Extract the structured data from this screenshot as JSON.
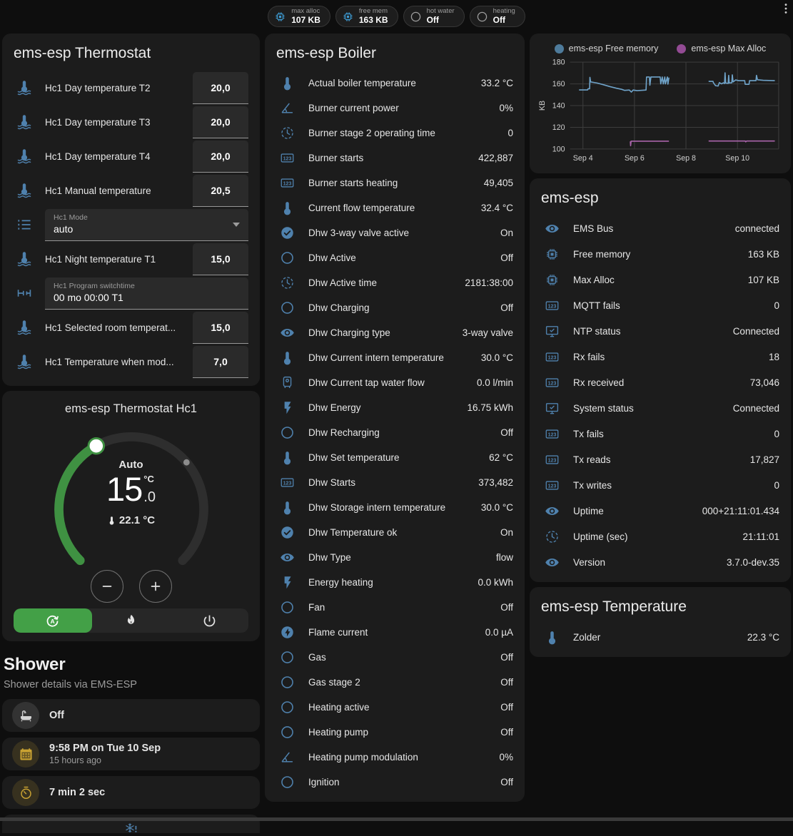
{
  "colors": {
    "accent_green": "#43a047",
    "icon_blue": "#4f81ad",
    "chip_blue": "#3d9ad1",
    "amber": "#c9a232"
  },
  "header": {
    "chips": [
      {
        "icon": "chip",
        "icon_color": "#3d9ad1",
        "label": "max alloc",
        "value": "107 KB"
      },
      {
        "icon": "chip",
        "icon_color": "#3d9ad1",
        "label": "free mem",
        "value": "163 KB"
      },
      {
        "icon": "circle",
        "icon_color": "#9e9e9e",
        "label": "hot water",
        "value": "Off"
      },
      {
        "icon": "circle",
        "icon_color": "#9e9e9e",
        "label": "heating",
        "value": "Off"
      }
    ]
  },
  "thermostat_card": {
    "title": "ems-esp Thermostat",
    "rows": [
      {
        "type": "number",
        "icon": "thermometer-water",
        "label": "Hc1 Day temperature T2",
        "value": "20,0"
      },
      {
        "type": "number",
        "icon": "thermometer-water",
        "label": "Hc1 Day temperature T3",
        "value": "20,0"
      },
      {
        "type": "number",
        "icon": "thermometer-water",
        "label": "Hc1 Day temperature T4",
        "value": "20,0"
      },
      {
        "type": "number",
        "icon": "thermometer-water",
        "label": "Hc1 Manual temperature",
        "value": "20,5"
      },
      {
        "type": "select",
        "icon": "format-list",
        "label": "Hc1 Mode",
        "value": "auto"
      },
      {
        "type": "number",
        "icon": "thermometer-water",
        "label": "Hc1 Night temperature T1",
        "value": "15,0"
      },
      {
        "type": "text",
        "icon": "pipe-valve",
        "label": "Hc1 Program switchtime",
        "value": "00 mo 00:00 T1"
      },
      {
        "type": "number",
        "icon": "thermometer-water",
        "label": "Hc1 Selected room temperat...",
        "value": "15,0"
      },
      {
        "type": "number",
        "icon": "thermometer-water",
        "label": "Hc1 Temperature when mod...",
        "value": "7,0"
      }
    ]
  },
  "hc1_card": {
    "title": "ems-esp Thermostat Hc1",
    "mode_text": "Auto",
    "target_whole": "15",
    "target_fraction": ".0",
    "unit": "°C",
    "current_temp": "22.1 °C",
    "modes": [
      {
        "icon": "auto-mode",
        "active": true
      },
      {
        "icon": "fire"
      },
      {
        "icon": "power"
      }
    ]
  },
  "shower": {
    "title": "Shower",
    "subtitle": "Shower details via EMS-ESP",
    "items": [
      {
        "icon": "bathtub",
        "icon_color": "#d4d4d4",
        "icon_bg": "rgba(255,255,255,0.1)",
        "value": "Off"
      },
      {
        "icon": "calendar",
        "icon_color": "#c9a232",
        "icon_bg": "rgba(201,162,50,0.16)",
        "value": "9:58 PM on Tue 10 Sep",
        "secondary": "15 hours ago"
      },
      {
        "icon": "timer",
        "icon_color": "#c9a232",
        "icon_bg": "rgba(201,162,50,0.16)",
        "value": "7 min 2 sec"
      },
      {
        "type": "alert",
        "icon": "snowflake-alert",
        "icon_color": "#4f81ad"
      }
    ]
  },
  "boiler_card": {
    "title": "ems-esp Boiler",
    "rows": [
      {
        "icon": "thermometer",
        "label": "Actual boiler temperature",
        "value": "33.2 °C"
      },
      {
        "icon": "angle",
        "label": "Burner current power",
        "value": "0%"
      },
      {
        "icon": "clock",
        "label": "Burner stage 2 operating time",
        "value": "0"
      },
      {
        "icon": "counter",
        "label": "Burner starts",
        "value": "422,887"
      },
      {
        "icon": "counter",
        "label": "Burner starts heating",
        "value": "49,405"
      },
      {
        "icon": "thermometer",
        "label": "Current flow temperature",
        "value": "32.4 °C"
      },
      {
        "icon": "check-circle",
        "label": "Dhw 3-way valve active",
        "value": "On"
      },
      {
        "icon": "circle",
        "label": "Dhw Active",
        "value": "Off"
      },
      {
        "icon": "clock",
        "label": "Dhw Active time",
        "value": "2181:38:00"
      },
      {
        "icon": "circle",
        "label": "Dhw Charging",
        "value": "Off"
      },
      {
        "icon": "eye",
        "label": "Dhw Charging type",
        "value": "3-way valve"
      },
      {
        "icon": "thermometer",
        "label": "Dhw Current intern temperature",
        "value": "30.0 °C"
      },
      {
        "icon": "water-heater",
        "label": "Dhw Current tap water flow",
        "value": "0.0 l/min"
      },
      {
        "icon": "flash",
        "label": "Dhw Energy",
        "value": "16.75 kWh"
      },
      {
        "icon": "circle",
        "label": "Dhw Recharging",
        "value": "Off"
      },
      {
        "icon": "thermometer",
        "label": "Dhw Set temperature",
        "value": "62 °C"
      },
      {
        "icon": "counter",
        "label": "Dhw Starts",
        "value": "373,482"
      },
      {
        "icon": "thermometer",
        "label": "Dhw Storage intern temperature",
        "value": "30.0 °C"
      },
      {
        "icon": "check-circle",
        "label": "Dhw Temperature ok",
        "value": "On"
      },
      {
        "icon": "eye",
        "label": "Dhw Type",
        "value": "flow"
      },
      {
        "icon": "flash",
        "label": "Energy heating",
        "value": "0.0 kWh"
      },
      {
        "icon": "circle",
        "label": "Fan",
        "value": "Off"
      },
      {
        "icon": "flash-circle",
        "label": "Flame current",
        "value": "0.0 µA"
      },
      {
        "icon": "circle",
        "label": "Gas",
        "value": "Off"
      },
      {
        "icon": "circle",
        "label": "Gas stage 2",
        "value": "Off"
      },
      {
        "icon": "circle",
        "label": "Heating active",
        "value": "Off"
      },
      {
        "icon": "circle",
        "label": "Heating pump",
        "value": "Off"
      },
      {
        "icon": "angle",
        "label": "Heating pump modulation",
        "value": "0%"
      },
      {
        "icon": "circle",
        "label": "Ignition",
        "value": "Off"
      }
    ]
  },
  "chart_data": {
    "type": "line",
    "title": "",
    "ylabel": "KB",
    "grid": true,
    "legend_position": "top",
    "xlim": [
      3.5,
      11.6
    ],
    "ylim": [
      100,
      180
    ],
    "yticks": [
      100,
      120,
      140,
      160,
      180
    ],
    "xticks": [
      {
        "v": 4,
        "label": "Sep 4"
      },
      {
        "v": 6,
        "label": "Sep 6"
      },
      {
        "v": 8,
        "label": "Sep 8"
      },
      {
        "v": 10,
        "label": "Sep 10"
      }
    ],
    "series": [
      {
        "name": "ems-esp Free memory",
        "color": "#4e7b9b",
        "line_color": "#6fa3c9",
        "segments": [
          [
            [
              3.85,
              154.5
            ],
            [
              4.18,
              154.5
            ],
            [
              4.2,
              155.5
            ],
            [
              4.26,
              155.5
            ],
            [
              4.27,
              166
            ],
            [
              4.3,
              161.8
            ],
            [
              4.55,
              160.8
            ],
            [
              4.8,
              159.2
            ],
            [
              5.05,
              157.5
            ],
            [
              5.3,
              156
            ],
            [
              5.5,
              155
            ],
            [
              5.62,
              154
            ],
            [
              5.8,
              154.3
            ],
            [
              5.88,
              152.5
            ],
            [
              5.95,
              154.3
            ],
            [
              6.1,
              153.8
            ],
            [
              6.45,
              154.3
            ],
            [
              6.47,
              166.3
            ],
            [
              6.58,
              166.3
            ],
            [
              6.6,
              158.8
            ],
            [
              6.64,
              166.3
            ],
            [
              7.0,
              166.3
            ],
            [
              7.02,
              160
            ],
            [
              7.08,
              166.3
            ],
            [
              7.12,
              160
            ],
            [
              7.18,
              166.3
            ],
            [
              7.2,
              160
            ],
            [
              7.28,
              166.3
            ],
            [
              7.3,
              159.8
            ],
            [
              7.34,
              165.8
            ]
          ],
          [
            [
              8.88,
              162.3
            ],
            [
              9.05,
              162.3
            ],
            [
              9.07,
              161
            ],
            [
              9.15,
              158.3
            ],
            [
              9.25,
              158
            ],
            [
              9.3,
              161.2
            ],
            [
              9.38,
              160
            ],
            [
              9.45,
              161
            ],
            [
              9.5,
              160.3
            ],
            [
              9.52,
              170.2
            ],
            [
              9.54,
              160.8
            ],
            [
              9.64,
              160.5
            ],
            [
              9.66,
              167.8
            ],
            [
              9.68,
              160.8
            ],
            [
              9.78,
              161
            ],
            [
              9.8,
              168.3
            ],
            [
              9.83,
              161.8
            ],
            [
              9.93,
              163.6
            ],
            [
              10.05,
              163
            ],
            [
              10.28,
              163
            ],
            [
              10.3,
              159.6
            ],
            [
              10.45,
              159.6
            ],
            [
              10.47,
              163
            ],
            [
              10.72,
              163
            ],
            [
              10.74,
              167.8
            ],
            [
              10.78,
              163.8
            ],
            [
              11.0,
              163.3
            ],
            [
              11.45,
              163
            ]
          ]
        ]
      },
      {
        "name": "ems-esp Max Alloc",
        "color": "#934b94",
        "line_color": "#a964aa",
        "segments": [
          [
            [
              5.84,
              107
            ],
            [
              5.85,
              103
            ],
            [
              5.87,
              107.2
            ],
            [
              7.34,
              107.2
            ]
          ],
          [
            [
              8.88,
              107.4
            ],
            [
              10.3,
              107.4
            ],
            [
              10.32,
              106.6
            ],
            [
              10.36,
              107.4
            ],
            [
              11.45,
              107.4
            ]
          ]
        ]
      }
    ]
  },
  "emsesp_card": {
    "title": "ems-esp",
    "rows": [
      {
        "icon": "eye",
        "label": "EMS Bus",
        "value": "connected"
      },
      {
        "icon": "chip",
        "label": "Free memory",
        "value": "163 KB"
      },
      {
        "icon": "chip",
        "label": "Max Alloc",
        "value": "107 KB"
      },
      {
        "icon": "counter",
        "label": "MQTT fails",
        "value": "0"
      },
      {
        "icon": "monitor-check",
        "label": "NTP status",
        "value": "Connected"
      },
      {
        "icon": "counter",
        "label": "Rx fails",
        "value": "18"
      },
      {
        "icon": "counter",
        "label": "Rx received",
        "value": "73,046"
      },
      {
        "icon": "monitor-check",
        "label": "System status",
        "value": "Connected"
      },
      {
        "icon": "counter",
        "label": "Tx fails",
        "value": "0"
      },
      {
        "icon": "counter",
        "label": "Tx reads",
        "value": "17,827"
      },
      {
        "icon": "counter",
        "label": "Tx writes",
        "value": "0"
      },
      {
        "icon": "eye",
        "label": "Uptime",
        "value": "000+21:11:01.434"
      },
      {
        "icon": "clock",
        "label": "Uptime (sec)",
        "value": "21:11:01"
      },
      {
        "icon": "eye",
        "label": "Version",
        "value": "3.7.0-dev.35"
      }
    ]
  },
  "temperature_card": {
    "title": "ems-esp Temperature",
    "rows": [
      {
        "icon": "thermometer",
        "label": "Zolder",
        "value": "22.3 °C"
      }
    ]
  }
}
